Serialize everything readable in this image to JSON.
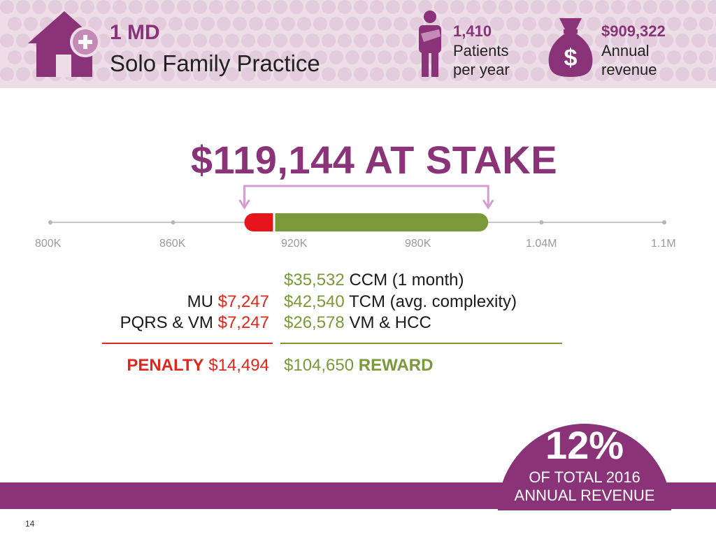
{
  "header": {
    "practice_count": "1 MD",
    "practice_name": "Solo Family Practice",
    "patients_value": "1,410",
    "patients_label_1": "Patients",
    "patients_label_2": "per year",
    "revenue_value": "$909,322",
    "revenue_label_1": "Annual",
    "revenue_label_2": "revenue",
    "icons": [
      "house-plus-icon",
      "patient-icon",
      "money-bag-icon"
    ]
  },
  "headline": "$119,144 AT STAKE",
  "scale": {
    "ticks": [
      "800K",
      "860K",
      "920K",
      "980K",
      "1.04M",
      "1.1M"
    ],
    "penalty_color": "#e8141c",
    "reward_color": "#7a9a3a"
  },
  "chart_data": {
    "type": "bar",
    "x_ticks": [
      "800K",
      "860K",
      "920K",
      "980K",
      "1.04M",
      "1.1M"
    ],
    "xlim": [
      800000,
      1100000
    ],
    "series": [
      {
        "name": "PENALTY",
        "start": 894828,
        "end": 909322
      },
      {
        "name": "REWARD",
        "start": 909322,
        "end": 1013972
      }
    ]
  },
  "penalty": {
    "rows": [
      {
        "label": "MU",
        "value": "$7,247"
      },
      {
        "label": "PQRS & VM",
        "value": "$7,247"
      }
    ],
    "total_label": "PENALTY",
    "total_value": "$14,494"
  },
  "reward": {
    "rows": [
      {
        "value": "$35,532",
        "label": "CCM (1 month)"
      },
      {
        "value": "$42,540",
        "label": "TCM (avg. complexity)"
      },
      {
        "value": "$26,578",
        "label": "VM & HCC"
      }
    ],
    "total_value": "$104,650",
    "total_label": "REWARD"
  },
  "percent_badge": {
    "value": "12%",
    "label_1": "OF TOTAL 2016",
    "label_2": "ANNUAL REVENUE"
  },
  "page_number": "14",
  "colors": {
    "purple": "#8a3379",
    "header_bg": "#ecdde7",
    "green": "#7a9a3a",
    "red": "#e1261c"
  }
}
